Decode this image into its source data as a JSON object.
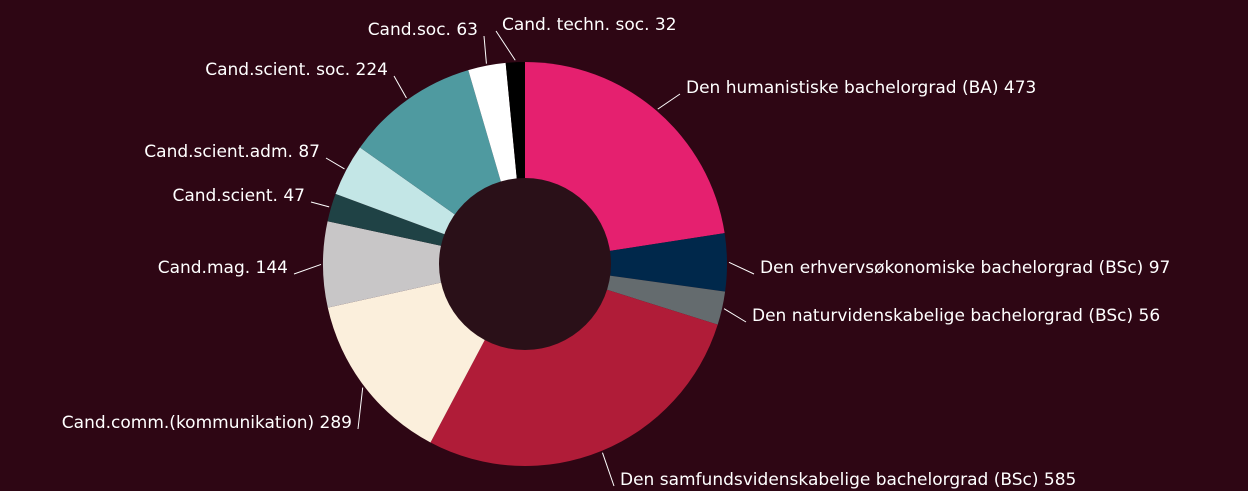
{
  "chart_data": {
    "type": "donut",
    "categories": [
      "Den humanistiske bachelorgrad (BA)",
      "Den erhvervsøkonomiske bachelorgrad (BSc)",
      "Den naturvidenskabelige bachelorgrad (BSc)",
      "Den samfundsvidenskabelige bachelorgrad (BSc)",
      "Cand.comm.(kommunikation)",
      "Cand.mag.",
      "Cand.scient.",
      "Cand.scient.adm.",
      "Cand.scient. soc.",
      "Cand.soc.",
      "Cand. techn. soc."
    ],
    "values": [
      473,
      97,
      56,
      585,
      289,
      144,
      47,
      87,
      224,
      63,
      32
    ],
    "colors": [
      "#e5206f",
      "#00284b",
      "#646b6e",
      "#b01c38",
      "#fbefdc",
      "#c8c6c7",
      "#1f4245",
      "#c3e6e6",
      "#4f9aa0",
      "#ffffff",
      "#000000"
    ]
  }
}
